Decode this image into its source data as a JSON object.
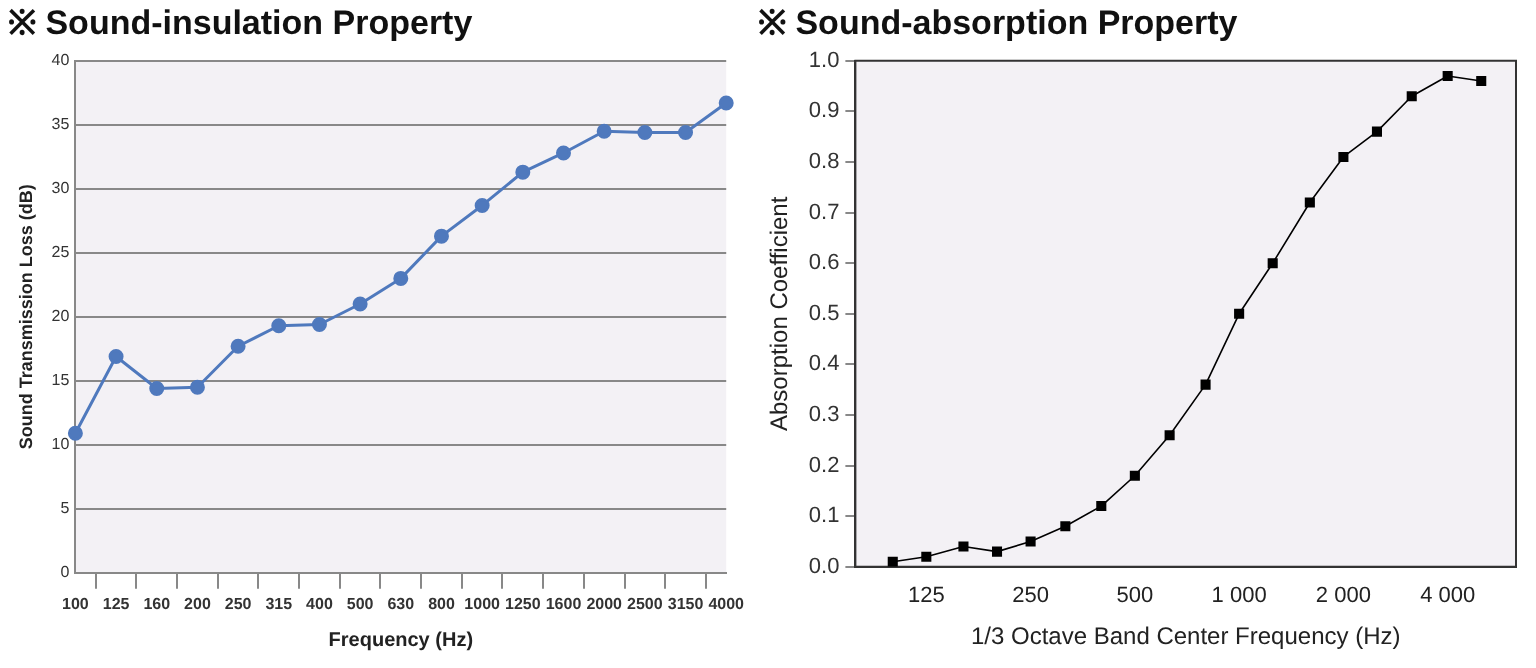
{
  "chart_data": [
    {
      "type": "line",
      "title": "※ Sound-insulation Property",
      "xlabel": "Frequency (Hz)",
      "ylabel": "Sound Transmission Loss (dB)",
      "categories": [
        "100",
        "125",
        "160",
        "200",
        "250",
        "315",
        "400",
        "500",
        "630",
        "800",
        "1000",
        "1250",
        "1600",
        "2000",
        "2500",
        "3150",
        "4000"
      ],
      "series": [
        {
          "color": "#4f79bd",
          "values": [
            10.9,
            16.9,
            14.4,
            14.5,
            17.7,
            19.3,
            19.4,
            21,
            23,
            26.3,
            28.7,
            31.3,
            32.8,
            34.5,
            34.4,
            34.4,
            36.7
          ]
        }
      ],
      "ylim": [
        0,
        40
      ],
      "yticks": [
        0,
        5,
        10,
        15,
        20,
        25,
        30,
        35,
        40
      ],
      "grid": "y",
      "marker": "circle"
    },
    {
      "type": "line",
      "title": "※ Sound-absorption Property",
      "xlabel": "1/3 Octave Band Center Frequency (Hz)",
      "ylabel": "Absorption Coefficient",
      "x": [
        100,
        125,
        160,
        200,
        250,
        315,
        400,
        500,
        630,
        800,
        1000,
        1250,
        1600,
        2000,
        2500,
        3150,
        4000,
        5000
      ],
      "series": [
        {
          "color": "#000000",
          "values": [
            0.01,
            0.02,
            0.04,
            0.03,
            0.05,
            0.08,
            0.12,
            0.18,
            0.26,
            0.36,
            0.5,
            0.6,
            0.72,
            0.81,
            0.86,
            0.93,
            0.97,
            0.96
          ]
        }
      ],
      "xlim": [
        78,
        6300
      ],
      "xticks": [
        125,
        250,
        500,
        {
          "value": 1000,
          "label": "1 000"
        },
        {
          "value": 2000,
          "label": "2 000"
        },
        {
          "value": 4000,
          "label": "4 000"
        }
      ],
      "ylim": [
        0,
        1
      ],
      "yticks": [
        {
          "value": 0,
          "label": "0.0"
        },
        {
          "value": 0.1,
          "label": "0.1"
        },
        {
          "value": 0.2,
          "label": "0.2"
        },
        {
          "value": 0.3,
          "label": "0.3"
        },
        {
          "value": 0.4,
          "label": "0.4"
        },
        {
          "value": 0.5,
          "label": "0.5"
        },
        {
          "value": 0.6,
          "label": "0.6"
        },
        {
          "value": 0.7,
          "label": "0.7"
        },
        {
          "value": 0.8,
          "label": "0.8"
        },
        {
          "value": 0.9,
          "label": "0.9"
        },
        {
          "value": 1,
          "label": "1.0"
        }
      ],
      "log": "x",
      "grid": false,
      "marker": "square"
    }
  ]
}
